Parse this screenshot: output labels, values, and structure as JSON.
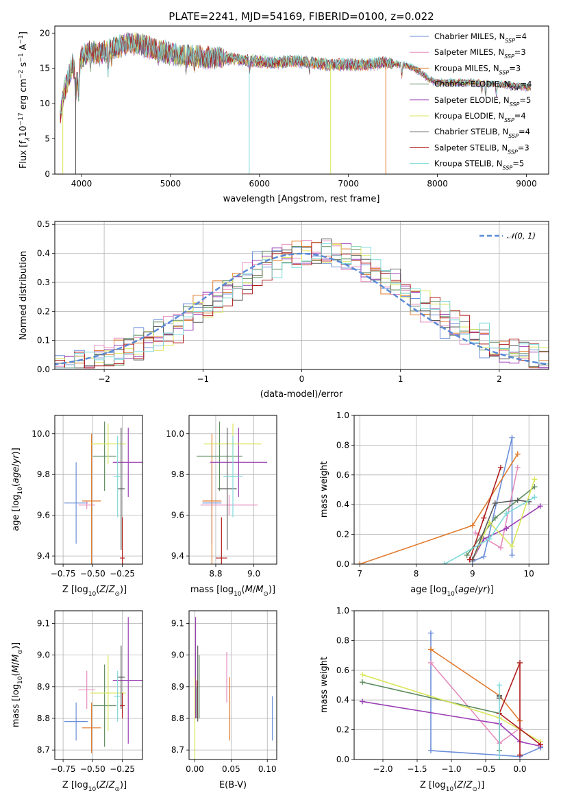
{
  "title": "PLATE=2241, MJD=54169, FIBERID=0100, z=0.022",
  "colors": {
    "series": [
      "#6b8fd9",
      "#e58cbd",
      "#e07b2e",
      "#5e8c5f",
      "#9b3fb5",
      "#d9e65a",
      "#5a5a5a",
      "#b01c1c",
      "#7fd9d9"
    ],
    "gauss": "#5a8ad6",
    "grid": "#b0b0b0"
  },
  "chart_data": [
    {
      "id": "spectrum",
      "type": "line",
      "xlabel": "wavelength [Angstrom, rest frame]",
      "ylabel": "Flux [f$_\\lambda$10$^{-17}$ erg cm$^{-2}$ s$^{-1}$ A$^{-1}$]",
      "xlim": [
        3700,
        9250
      ],
      "ylim": [
        0,
        21
      ],
      "xticks": [
        4000,
        5000,
        6000,
        7000,
        8000,
        9000
      ],
      "yticks": [
        0,
        5,
        10,
        15,
        20
      ],
      "grid": false,
      "legend_position": "top-right",
      "legend": [
        {
          "name": "Chabrier MILES",
          "nssp": "4"
        },
        {
          "name": "Salpeter MILES",
          "nssp": "3"
        },
        {
          "name": "Kroupa MILES",
          "nssp": "3"
        },
        {
          "name": "Chabrier ELODIE",
          "nssp": "4"
        },
        {
          "name": "Salpeter ELODIE",
          "nssp": "5"
        },
        {
          "name": "Kroupa ELODIE",
          "nssp": "4"
        },
        {
          "name": "Chabrier STELIB",
          "nssp": "4"
        },
        {
          "name": "Salpeter STELIB",
          "nssp": "3"
        },
        {
          "name": "Kroupa STELIB",
          "nssp": "5"
        }
      ],
      "continuum": {
        "x": [
          3760,
          3800,
          3850,
          3900,
          3950,
          4000,
          4100,
          4200,
          4300,
          4400,
          4500,
          4600,
          4700,
          4800,
          4900,
          5000,
          5200,
          5400,
          5600,
          5800,
          6000,
          6200,
          6400,
          6600,
          6800,
          7000,
          7200,
          7400,
          7600,
          7700,
          7800,
          7900,
          8000,
          8200,
          8400,
          8600,
          8800,
          9000,
          9200
        ],
        "y": [
          8,
          11.5,
          13.5,
          15.5,
          13,
          16.5,
          17.5,
          17,
          17.5,
          18,
          18.5,
          18.5,
          18.2,
          17.8,
          17.5,
          17,
          16.8,
          16.5,
          16.5,
          16.2,
          16.0,
          15.8,
          16.0,
          15.8,
          15.5,
          15.5,
          15.5,
          15.8,
          15.5,
          15.2,
          14.5,
          13.5,
          13.0,
          13.0,
          13.0,
          12.8,
          12.6,
          12.3,
          12.0
        ]
      },
      "spikes": [
        {
          "x": 3790,
          "y": 0,
          "series": 5
        },
        {
          "x": 3935,
          "y": 0,
          "series": 6
        },
        {
          "x": 5885,
          "y": 0,
          "series": 8
        },
        {
          "x": 6800,
          "y": 0,
          "series": 5
        },
        {
          "x": 7420,
          "y": 0,
          "series": 2
        }
      ]
    },
    {
      "id": "residuals",
      "type": "histogram",
      "xlabel": "(data-model)/error",
      "ylabel": "Normed distribution",
      "xlim": [
        -2.5,
        2.5
      ],
      "ylim": [
        0,
        0.51
      ],
      "xticks": [
        -2,
        -1,
        0,
        1,
        2
      ],
      "yticks": [
        0.0,
        0.1,
        0.2,
        0.3,
        0.4,
        0.5
      ],
      "grid": true,
      "legend_position": "top-right",
      "gauss_label": "𝒩(0, 1)",
      "bin_width": 0.1,
      "bin_start": -2.6
    },
    {
      "id": "age-vs-Z",
      "type": "errorbar",
      "xlabel": "Z [log$_{10}$(Z/Z$_\\odot$)]",
      "ylabel": "age  [log$_{10}$(age/yr)]",
      "xlim": [
        -0.82,
        -0.08
      ],
      "ylim": [
        9.36,
        10.09
      ],
      "xticks": [
        -0.75,
        -0.5,
        -0.25
      ],
      "yticks": [
        9.4,
        9.6,
        9.8,
        10.0
      ],
      "grid": true,
      "points": [
        {
          "x": -0.64,
          "y": 9.66,
          "xerr": 0.1,
          "yerr": 0.2
        },
        {
          "x": -0.55,
          "y": 9.65,
          "xerr": 0.07,
          "yerr": 0.02
        },
        {
          "x": -0.51,
          "y": 9.67,
          "xerr": 0.08,
          "yerr": 0.33
        },
        {
          "x": -0.4,
          "y": 9.89,
          "xerr": 0.1,
          "yerr": 0.17
        },
        {
          "x": -0.2,
          "y": 9.86,
          "xerr": 0.13,
          "yerr": 0.17
        },
        {
          "x": -0.37,
          "y": 9.95,
          "xerr": 0.15,
          "yerr": 0.1
        },
        {
          "x": -0.26,
          "y": 9.73,
          "xerr": 0.03,
          "yerr": 0.3
        },
        {
          "x": -0.25,
          "y": 9.39,
          "xerr": 0.02,
          "yerr": 0.2
        },
        {
          "x": -0.29,
          "y": 9.79,
          "xerr": 0.03,
          "yerr": 0.2
        }
      ]
    },
    {
      "id": "age-vs-mass",
      "type": "errorbar",
      "xlabel": "mass [log$_{10}$(M/M$_\\odot$)]",
      "ylabel": "",
      "xlim": [
        8.66,
        9.12
      ],
      "ylim": [
        9.36,
        10.09
      ],
      "xticks": [
        8.8,
        9.0
      ],
      "yticks": [
        9.4,
        9.6,
        9.8,
        10.0
      ],
      "grid": true,
      "points": [
        {
          "x": 8.78,
          "y": 9.66,
          "xerr": 0.05,
          "yerr": 0.2
        },
        {
          "x": 8.87,
          "y": 9.65,
          "xerr": 0.15,
          "yerr": 0.05
        },
        {
          "x": 8.78,
          "y": 9.67,
          "xerr": 0.05,
          "yerr": 0.33
        },
        {
          "x": 8.82,
          "y": 9.89,
          "xerr": 0.12,
          "yerr": 0.17
        },
        {
          "x": 8.92,
          "y": 9.86,
          "xerr": 0.15,
          "yerr": 0.17
        },
        {
          "x": 8.89,
          "y": 9.95,
          "xerr": 0.15,
          "yerr": 0.1
        },
        {
          "x": 8.86,
          "y": 9.73,
          "xerr": 0.05,
          "yerr": 0.3
        },
        {
          "x": 8.83,
          "y": 9.39,
          "xerr": 0.03,
          "yerr": 0.2
        },
        {
          "x": 8.89,
          "y": 9.79,
          "xerr": 0.05,
          "yerr": 0.2
        }
      ]
    },
    {
      "id": "weight-vs-age",
      "type": "line",
      "xlabel": "age  [log$_{10}$(age/yr)]",
      "ylabel": "mass weight",
      "xlim": [
        6.9,
        10.35
      ],
      "ylim": [
        0,
        1
      ],
      "xticks": [
        7,
        8,
        9,
        10
      ],
      "yticks": [
        0.0,
        0.2,
        0.4,
        0.6,
        0.8,
        1.0
      ],
      "grid": true,
      "series": [
        {
          "x": [
            9.0,
            9.2,
            9.7,
            9.7
          ],
          "y": [
            0.02,
            0.05,
            0.85,
            0.06
          ]
        },
        {
          "x": [
            9.05,
            9.5,
            9.8
          ],
          "y": [
            0.21,
            0.11,
            0.65
          ]
        },
        {
          "x": [
            7.0,
            9.0,
            9.8
          ],
          "y": [
            0.0,
            0.26,
            0.74
          ]
        },
        {
          "x": [
            8.9,
            9.4,
            10.1
          ],
          "y": [
            0.06,
            0.31,
            0.52
          ]
        },
        {
          "x": [
            9.0,
            9.2,
            9.6,
            10.2
          ],
          "y": [
            0.03,
            0.17,
            0.24,
            0.39
          ]
        },
        {
          "x": [
            9.0,
            9.3,
            9.7,
            10.1
          ],
          "y": [
            0.03,
            0.28,
            0.12,
            0.57
          ]
        },
        {
          "x": [
            9.0,
            9.4,
            9.8,
            10.0
          ],
          "y": [
            0.03,
            0.41,
            0.43,
            0.42
          ]
        },
        {
          "x": [
            8.95,
            9.2,
            9.5
          ],
          "y": [
            0.03,
            0.31,
            0.65
          ]
        },
        {
          "x": [
            8.5,
            9.3,
            9.6,
            10.1
          ],
          "y": [
            0.0,
            0.17,
            0.34,
            0.45
          ]
        }
      ]
    },
    {
      "id": "mass-vs-Z",
      "type": "errorbar",
      "xlabel": "Z [log$_{10}$(Z/Z$_\\odot$)]",
      "ylabel": "mass [log$_{10}$(M/M$_\\odot$)]",
      "xlim": [
        -0.82,
        -0.08
      ],
      "ylim": [
        8.67,
        9.14
      ],
      "xticks": [
        -0.75,
        -0.5,
        -0.25
      ],
      "yticks": [
        8.7,
        8.8,
        8.9,
        9.0,
        9.1
      ],
      "grid": true,
      "points": [
        {
          "x": -0.64,
          "y": 8.79,
          "xerr": 0.1,
          "yerr": 0.06
        },
        {
          "x": -0.55,
          "y": 8.89,
          "xerr": 0.07,
          "yerr": 0.06
        },
        {
          "x": -0.51,
          "y": 8.77,
          "xerr": 0.08,
          "yerr": 0.08
        },
        {
          "x": -0.4,
          "y": 8.84,
          "xerr": 0.1,
          "yerr": 0.13
        },
        {
          "x": -0.2,
          "y": 8.92,
          "xerr": 0.13,
          "yerr": 0.2
        },
        {
          "x": -0.37,
          "y": 8.88,
          "xerr": 0.15,
          "yerr": 0.12
        },
        {
          "x": -0.26,
          "y": 8.93,
          "xerr": 0.03,
          "yerr": 0.1
        },
        {
          "x": -0.25,
          "y": 8.84,
          "xerr": 0.02,
          "yerr": 0.04
        },
        {
          "x": -0.29,
          "y": 8.87,
          "xerr": 0.03,
          "yerr": 0.08
        }
      ]
    },
    {
      "id": "mass-vs-ebv",
      "type": "errorbar",
      "xlabel": "E(B-V)",
      "ylabel": "",
      "xlim": [
        -0.008,
        0.113
      ],
      "ylim": [
        8.67,
        9.14
      ],
      "xticks": [
        0.0,
        0.05,
        0.1
      ],
      "yticks": [
        8.7,
        8.8,
        8.9,
        9.0,
        9.1
      ],
      "grid": true,
      "points": [
        {
          "x": 0.107,
          "y": 8.8,
          "xerr": 0,
          "yerr": 0.07
        },
        {
          "x": 0.044,
          "y": 8.93,
          "xerr": 0,
          "yerr": 0.08
        },
        {
          "x": 0.048,
          "y": 8.83,
          "xerr": 0,
          "yerr": 0.1
        },
        {
          "x": 0.006,
          "y": 8.9,
          "xerr": 0,
          "yerr": 0.1
        },
        {
          "x": 0.001,
          "y": 8.96,
          "xerr": 0,
          "yerr": 0.16
        },
        {
          "x": 0.0,
          "y": 8.8,
          "xerr": 0,
          "yerr": 0.13
        },
        {
          "x": 0.004,
          "y": 8.91,
          "xerr": 0,
          "yerr": 0.12
        },
        {
          "x": 0.003,
          "y": 8.86,
          "xerr": 0,
          "yerr": 0.06
        },
        {
          "x": 0.002,
          "y": 8.85,
          "xerr": 0,
          "yerr": 0.05
        }
      ]
    },
    {
      "id": "weight-vs-Z",
      "type": "line",
      "xlabel": "Z [log$_{10}$(Z/Z$_\\odot$)]",
      "ylabel": "mass weight",
      "xlim": [
        -2.42,
        0.42
      ],
      "ylim": [
        0,
        1
      ],
      "xticks": [
        -2.0,
        -1.5,
        -1.0,
        -0.5,
        0.0
      ],
      "yticks": [
        0.0,
        0.2,
        0.4,
        0.6,
        0.8,
        1.0
      ],
      "grid": true,
      "series": [
        {
          "x": [
            -1.3,
            -1.3,
            0.0,
            0.3
          ],
          "y": [
            0.85,
            0.06,
            0.02,
            0.08
          ]
        },
        {
          "x": [
            -1.3,
            -0.3,
            0.0
          ],
          "y": [
            0.65,
            0.11,
            0.21
          ]
        },
        {
          "x": [
            -1.3,
            -0.3,
            0.0
          ],
          "y": [
            0.74,
            0.43,
            0.26
          ]
        },
        {
          "x": [
            -2.3,
            -0.3,
            -0.3
          ],
          "y": [
            0.52,
            0.31,
            0.06
          ]
        },
        {
          "x": [
            -2.3,
            -0.3,
            0.0,
            0.3
          ],
          "y": [
            0.39,
            0.24,
            0.12,
            0.09
          ]
        },
        {
          "x": [
            -2.3,
            -0.3,
            0.3
          ],
          "y": [
            0.57,
            0.28,
            0.12
          ]
        },
        {
          "x": [
            -0.3,
            -0.3,
            -0.3
          ],
          "y": [
            0.41,
            0.42,
            0.43
          ]
        },
        {
          "x": [
            0.0,
            0.0,
            -0.3,
            0.3
          ],
          "y": [
            0.03,
            0.65,
            0.31,
            0.1
          ]
        },
        {
          "x": [
            -0.3,
            -0.3
          ],
          "y": [
            0.5,
            0.0
          ]
        }
      ]
    }
  ]
}
